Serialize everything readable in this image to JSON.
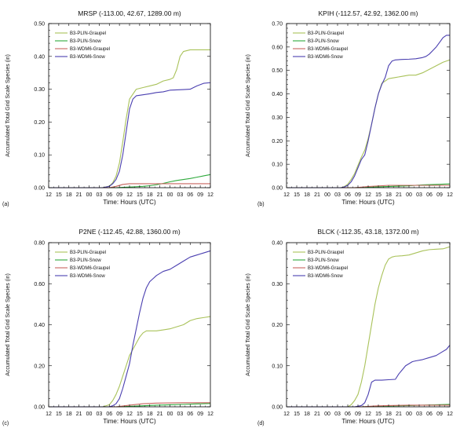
{
  "colors": {
    "B3-PLIN-Graupel": "#a9c25a",
    "B3-PLIN-Snow": "#2eaa3c",
    "B3-WDM6-Graupel": "#c8645f",
    "B3-WDM6-Snow": "#4a3fb0"
  },
  "chart_data": [
    {
      "type": "line",
      "panel_label": "(a)",
      "title": "MRSP (-113.00, 42.67, 1289.00 m)",
      "xlabel": "Time: Hours (UTC)",
      "ylabel": "Accumulated Total Grid Scale Species (in)",
      "x_tick_labels": [
        "12",
        "15",
        "18",
        "21",
        "00",
        "03",
        "06",
        "09",
        "12",
        "15",
        "18",
        "21",
        "00",
        "03",
        "06",
        "09",
        "12"
      ],
      "xlim": [
        0,
        48
      ],
      "ylim": [
        0,
        0.5
      ],
      "y_ticks": [
        0,
        0.1,
        0.2,
        0.3,
        0.4,
        0.5
      ],
      "y_tick_labels": [
        "0.00",
        "0.10",
        "0.20",
        "0.30",
        "0.40",
        "0.50"
      ],
      "legend_position": "top-left",
      "series": [
        {
          "name": "B3-PLIN-Graupel",
          "x": [
            0,
            16,
            18,
            19,
            20,
            21,
            22,
            23,
            24,
            26,
            28,
            30,
            32,
            34,
            36,
            37,
            38,
            39,
            40,
            42,
            44,
            46,
            48
          ],
          "y": [
            0,
            0,
            0.005,
            0.015,
            0.035,
            0.075,
            0.14,
            0.21,
            0.27,
            0.3,
            0.305,
            0.31,
            0.315,
            0.325,
            0.33,
            0.335,
            0.36,
            0.4,
            0.415,
            0.42,
            0.42,
            0.42,
            0.42
          ]
        },
        {
          "name": "B3-PLIN-Snow",
          "x": [
            0,
            20,
            22,
            24,
            26,
            28,
            30,
            32,
            34,
            36,
            38,
            40,
            42,
            44,
            46,
            48
          ],
          "y": [
            0,
            0,
            0.001,
            0.002,
            0.003,
            0.004,
            0.006,
            0.009,
            0.013,
            0.018,
            0.022,
            0.025,
            0.028,
            0.032,
            0.036,
            0.04
          ]
        },
        {
          "name": "B3-WDM6-Graupel",
          "x": [
            0,
            18,
            20,
            22,
            24,
            26,
            30,
            36,
            40,
            44,
            48
          ],
          "y": [
            0,
            0,
            0.004,
            0.01,
            0.012,
            0.012,
            0.012,
            0.012,
            0.012,
            0.012,
            0.012
          ]
        },
        {
          "name": "B3-WDM6-Snow",
          "x": [
            0,
            16,
            18,
            19,
            20,
            21,
            22,
            23,
            24,
            25,
            26,
            28,
            30,
            32,
            34,
            36,
            38,
            40,
            42,
            44,
            46,
            48
          ],
          "y": [
            0,
            0,
            0.004,
            0.012,
            0.025,
            0.05,
            0.1,
            0.17,
            0.24,
            0.27,
            0.28,
            0.283,
            0.286,
            0.29,
            0.292,
            0.297,
            0.298,
            0.299,
            0.3,
            0.31,
            0.318,
            0.32
          ]
        }
      ]
    },
    {
      "type": "line",
      "panel_label": "(b)",
      "title": "KPIH (-112.57, 42.92, 1362.00 m)",
      "xlabel": "Time: Hours (UTC)",
      "ylabel": "Accumulated Total Grid Scale Species (in)",
      "x_tick_labels": [
        "12",
        "15",
        "18",
        "21",
        "00",
        "03",
        "06",
        "09",
        "12",
        "15",
        "18",
        "21",
        "00",
        "03",
        "06",
        "09",
        "12"
      ],
      "xlim": [
        0,
        48
      ],
      "ylim": [
        0,
        0.7
      ],
      "y_ticks": [
        0,
        0.1,
        0.2,
        0.3,
        0.4,
        0.5,
        0.6,
        0.7
      ],
      "y_tick_labels": [
        "0.00",
        "0.10",
        "0.20",
        "0.30",
        "0.40",
        "0.50",
        "0.60",
        "0.70"
      ],
      "legend_position": "top-left",
      "series": [
        {
          "name": "B3-PLIN-Graupel",
          "x": [
            0,
            16,
            17,
            18,
            19,
            20,
            21,
            22,
            23,
            24,
            25,
            26,
            27,
            28,
            30,
            32,
            34,
            36,
            38,
            40,
            42,
            44,
            46,
            48
          ],
          "y": [
            0,
            0,
            0.005,
            0.015,
            0.035,
            0.06,
            0.095,
            0.13,
            0.16,
            0.21,
            0.27,
            0.34,
            0.4,
            0.445,
            0.465,
            0.47,
            0.475,
            0.48,
            0.48,
            0.49,
            0.505,
            0.52,
            0.535,
            0.545
          ]
        },
        {
          "name": "B3-PLIN-Snow",
          "x": [
            0,
            20,
            24,
            28,
            32,
            36,
            40,
            44,
            48
          ],
          "y": [
            0,
            0,
            0.002,
            0.004,
            0.006,
            0.008,
            0.012,
            0.014,
            0.016
          ]
        },
        {
          "name": "B3-WDM6-Graupel",
          "x": [
            0,
            20,
            24,
            28,
            30,
            36,
            48
          ],
          "y": [
            0,
            0,
            0.005,
            0.008,
            0.01,
            0.01,
            0.01
          ]
        },
        {
          "name": "B3-WDM6-Snow",
          "x": [
            0,
            16,
            17,
            18,
            19,
            20,
            21,
            22,
            23,
            24,
            25,
            26,
            27,
            28,
            29,
            30,
            31,
            32,
            34,
            36,
            38,
            40,
            41,
            42,
            43,
            44,
            45,
            46,
            47,
            48
          ],
          "y": [
            0,
            0,
            0.003,
            0.01,
            0.025,
            0.05,
            0.085,
            0.12,
            0.14,
            0.2,
            0.27,
            0.34,
            0.4,
            0.44,
            0.47,
            0.52,
            0.54,
            0.545,
            0.547,
            0.548,
            0.55,
            0.555,
            0.56,
            0.57,
            0.585,
            0.6,
            0.62,
            0.64,
            0.65,
            0.65
          ]
        }
      ]
    },
    {
      "type": "line",
      "panel_label": "(c)",
      "title": "P2NE (-112.45, 42.88, 1360.00 m)",
      "xlabel": "Time: Hours (UTC)",
      "ylabel": "Accumulated Total Grid Scale Species (in)",
      "x_tick_labels": [
        "12",
        "15",
        "18",
        "21",
        "00",
        "03",
        "06",
        "09",
        "12",
        "15",
        "18",
        "21",
        "00",
        "03",
        "06",
        "09",
        "12"
      ],
      "xlim": [
        0,
        48
      ],
      "ylim": [
        0,
        0.8
      ],
      "y_ticks": [
        0,
        0.2,
        0.4,
        0.6,
        0.8
      ],
      "y_tick_labels": [
        "0.00",
        "0.20",
        "0.40",
        "0.60",
        "0.80"
      ],
      "legend_position": "top-left",
      "series": [
        {
          "name": "B3-PLIN-Graupel",
          "x": [
            0,
            16,
            18,
            19,
            20,
            21,
            22,
            23,
            24,
            25,
            26,
            27,
            28,
            29,
            30,
            32,
            34,
            36,
            38,
            40,
            42,
            44,
            46,
            48
          ],
          "y": [
            0,
            0,
            0.01,
            0.03,
            0.06,
            0.1,
            0.15,
            0.2,
            0.25,
            0.28,
            0.31,
            0.34,
            0.36,
            0.37,
            0.37,
            0.37,
            0.375,
            0.38,
            0.39,
            0.4,
            0.42,
            0.43,
            0.435,
            0.44
          ]
        },
        {
          "name": "B3-PLIN-Snow",
          "x": [
            0,
            20,
            24,
            28,
            32,
            36,
            40,
            44,
            48
          ],
          "y": [
            0,
            0,
            0.002,
            0.005,
            0.008,
            0.01,
            0.012,
            0.014,
            0.016
          ]
        },
        {
          "name": "B3-WDM6-Graupel",
          "x": [
            0,
            20,
            24,
            28,
            32,
            40,
            48
          ],
          "y": [
            0,
            0,
            0.008,
            0.015,
            0.018,
            0.02,
            0.02
          ]
        },
        {
          "name": "B3-WDM6-Snow",
          "x": [
            0,
            18,
            19,
            20,
            21,
            22,
            23,
            24,
            25,
            26,
            27,
            28,
            29,
            30,
            31,
            32,
            34,
            36,
            38,
            40,
            42,
            44,
            46,
            48
          ],
          "y": [
            0,
            0,
            0.005,
            0.015,
            0.04,
            0.09,
            0.15,
            0.21,
            0.3,
            0.38,
            0.46,
            0.53,
            0.58,
            0.61,
            0.625,
            0.64,
            0.66,
            0.67,
            0.69,
            0.71,
            0.73,
            0.74,
            0.75,
            0.76
          ]
        }
      ]
    },
    {
      "type": "line",
      "panel_label": "(d)",
      "title": "BLCK (-112.35, 43.18, 1372.00 m)",
      "xlabel": "Time: Hours (UTC)",
      "ylabel": "Accumulated Total Grid Scale Species (in)",
      "x_tick_labels": [
        "12",
        "15",
        "18",
        "21",
        "00",
        "03",
        "06",
        "09",
        "12",
        "15",
        "18",
        "21",
        "00",
        "03",
        "06",
        "09",
        "12"
      ],
      "xlim": [
        0,
        48
      ],
      "ylim": [
        0,
        0.4
      ],
      "y_ticks": [
        0,
        0.1,
        0.2,
        0.3,
        0.4
      ],
      "y_tick_labels": [
        "0.00",
        "0.10",
        "0.20",
        "0.30",
        "0.40"
      ],
      "legend_position": "top-left",
      "series": [
        {
          "name": "B3-PLIN-Graupel",
          "x": [
            0,
            18,
            19,
            20,
            21,
            22,
            23,
            24,
            25,
            26,
            27,
            28,
            29,
            30,
            31,
            32,
            34,
            36,
            38,
            40,
            42,
            44,
            46,
            48
          ],
          "y": [
            0,
            0,
            0.005,
            0.015,
            0.03,
            0.06,
            0.1,
            0.15,
            0.2,
            0.25,
            0.29,
            0.32,
            0.345,
            0.36,
            0.365,
            0.367,
            0.368,
            0.37,
            0.375,
            0.38,
            0.383,
            0.384,
            0.385,
            0.39
          ]
        },
        {
          "name": "B3-PLIN-Snow",
          "x": [
            0,
            22,
            26,
            30,
            36,
            40,
            44,
            48
          ],
          "y": [
            0,
            0,
            0.001,
            0.002,
            0.003,
            0.004,
            0.005,
            0.006
          ]
        },
        {
          "name": "B3-WDM6-Graupel",
          "x": [
            0,
            22,
            26,
            30,
            36,
            48
          ],
          "y": [
            0,
            0,
            0.002,
            0.003,
            0.004,
            0.004
          ]
        },
        {
          "name": "B3-WDM6-Snow",
          "x": [
            0,
            20,
            22,
            23,
            24,
            25,
            26,
            27,
            28,
            30,
            32,
            33,
            34,
            35,
            36,
            37,
            38,
            40,
            42,
            44,
            45,
            46,
            47,
            48
          ],
          "y": [
            0,
            0,
            0.003,
            0.01,
            0.03,
            0.06,
            0.065,
            0.065,
            0.065,
            0.066,
            0.067,
            0.08,
            0.09,
            0.1,
            0.105,
            0.11,
            0.112,
            0.115,
            0.12,
            0.125,
            0.13,
            0.135,
            0.14,
            0.15
          ]
        }
      ]
    }
  ]
}
